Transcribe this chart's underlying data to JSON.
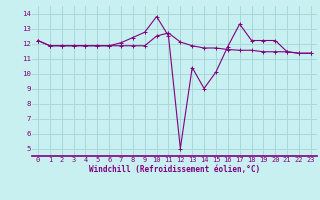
{
  "xlabel": "Windchill (Refroidissement éolien,°C)",
  "bg_color": "#c8f0f0",
  "grid_color": "#a8d8d8",
  "line_color": "#800080",
  "line1": [
    12.2,
    11.85,
    11.85,
    11.85,
    11.85,
    11.85,
    11.85,
    11.85,
    11.85,
    11.85,
    12.5,
    12.7,
    12.1,
    11.85,
    11.7,
    11.7,
    11.6,
    11.55,
    11.55,
    11.45,
    11.45,
    11.45,
    11.35,
    11.35
  ],
  "line2": [
    12.2,
    11.85,
    11.85,
    11.85,
    11.85,
    11.85,
    11.85,
    12.05,
    12.4,
    12.75,
    13.8,
    12.5,
    5.0,
    10.4,
    9.0,
    10.1,
    11.8,
    13.3,
    12.2,
    12.2,
    12.2,
    11.45,
    11.35,
    11.35
  ],
  "x": [
    0,
    1,
    2,
    3,
    4,
    5,
    6,
    7,
    8,
    9,
    10,
    11,
    12,
    13,
    14,
    15,
    16,
    17,
    18,
    19,
    20,
    21,
    22,
    23
  ],
  "ylim": [
    4.5,
    14.5
  ],
  "xlim": [
    -0.5,
    23.5
  ],
  "yticks": [
    5,
    6,
    7,
    8,
    9,
    10,
    11,
    12,
    13,
    14
  ],
  "xticks": [
    0,
    1,
    2,
    3,
    4,
    5,
    6,
    7,
    8,
    9,
    10,
    11,
    12,
    13,
    14,
    15,
    16,
    17,
    18,
    19,
    20,
    21,
    22,
    23
  ],
  "tick_fontsize": 5.0,
  "xlabel_fontsize": 5.5,
  "marker_size": 2.5,
  "line_width": 0.8
}
